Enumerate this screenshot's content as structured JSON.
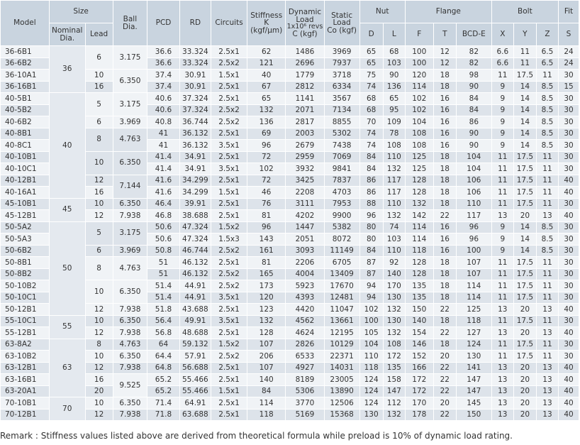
{
  "header": {
    "model": "Model",
    "size": "Size",
    "nominal_dia": [
      "Nominal",
      "Dia."
    ],
    "lead": "Lead",
    "ball_dia": [
      "Ball",
      "Dia."
    ],
    "pcd": "PCD",
    "rd": "RD",
    "circuits": "Circuits",
    "stiffness": [
      "Stiffness",
      "K",
      "(kgf/μm)"
    ],
    "dynamic_load": [
      "Dynamic",
      "Load",
      "1x10⁶ revs",
      "C (kgf)"
    ],
    "static_load": [
      "Static",
      "Load",
      "Co (kgf)"
    ],
    "nut": "Nut",
    "nut_d": "D",
    "nut_l": "L",
    "flange": "Flange",
    "flange_f": "F",
    "flange_t": "T",
    "flange_bcd": "BCD-E",
    "bolt": "Bolt",
    "bolt_x": "X",
    "bolt_y": "Y",
    "bolt_z": "Z",
    "fit": "Fit",
    "fit_s": "S"
  },
  "groups": [
    {
      "nominal": "36",
      "leads": [
        {
          "lead": "6",
          "ball": "3.175",
          "rows": [
            [
              "36-6B1",
              "36.6",
              "33.324",
              "2.5x1",
              "62",
              "1486",
              "3969",
              "65",
              "68",
              "100",
              "12",
              "82",
              "6.6",
              "11",
              "6.5",
              "24"
            ],
            [
              "36-6B2",
              "36.6",
              "33.324",
              "2.5x2",
              "121",
              "2696",
              "7937",
              "65",
              "103",
              "100",
              "12",
              "82",
              "6.6",
              "11",
              "6.5",
              "24"
            ]
          ]
        },
        {
          "lead": "10",
          "ball": "6.350",
          "ball_rows": 2,
          "rows": [
            [
              "36-10A1",
              "37.4",
              "30.91",
              "1.5x1",
              "40",
              "1779",
              "3718",
              "75",
              "90",
              "120",
              "18",
              "98",
              "11",
              "17.5",
              "11",
              "30"
            ]
          ]
        },
        {
          "lead": "16",
          "ball": null,
          "rows": [
            [
              "36-16B1",
              "37.4",
              "30.91",
              "2.5x1",
              "67",
              "2812",
              "6334",
              "74",
              "136",
              "114",
              "18",
              "90",
              "9",
              "14",
              "8.5",
              "15"
            ]
          ]
        }
      ]
    },
    {
      "nominal": "40",
      "leads": [
        {
          "lead": "5",
          "ball": "3.175",
          "rows": [
            [
              "40-5B1",
              "40.6",
              "37.324",
              "2.5x1",
              "65",
              "1141",
              "3567",
              "68",
              "65",
              "102",
              "16",
              "84",
              "9",
              "14",
              "8.5",
              "30"
            ],
            [
              "40-5B2",
              "40.6",
              "37.324",
              "2.5x2",
              "132",
              "2071",
              "7134",
              "68",
              "95",
              "102",
              "16",
              "84",
              "9",
              "14",
              "8.5",
              "30"
            ]
          ]
        },
        {
          "lead": "6",
          "ball": "3.969",
          "rows": [
            [
              "40-6B2",
              "40.8",
              "36.744",
              "2.5x2",
              "136",
              "2817",
              "8855",
              "70",
              "109",
              "104",
              "16",
              "86",
              "9",
              "14",
              "8.5",
              "30"
            ]
          ]
        },
        {
          "lead": "8",
          "ball": "4.763",
          "rows": [
            [
              "40-8B1",
              "41",
              "36.132",
              "2.5x1",
              "69",
              "2003",
              "5302",
              "74",
              "78",
              "108",
              "16",
              "90",
              "9",
              "14",
              "8.5",
              "30"
            ],
            [
              "40-8C1",
              "41",
              "36.132",
              "3.5x1",
              "96",
              "2679",
              "7438",
              "74",
              "108",
              "108",
              "16",
              "90",
              "9",
              "14",
              "8.5",
              "30"
            ]
          ]
        },
        {
          "lead": "10",
          "ball": "6.350",
          "rows": [
            [
              "40-10B1",
              "41.4",
              "34.91",
              "2.5x1",
              "72",
              "2959",
              "7069",
              "84",
              "110",
              "125",
              "18",
              "104",
              "11",
              "17.5",
              "11",
              "30"
            ],
            [
              "40-10C1",
              "41.4",
              "34.91",
              "3.5x1",
              "102",
              "3932",
              "9841",
              "84",
              "132",
              "125",
              "18",
              "104",
              "11",
              "17.5",
              "11",
              "30"
            ]
          ]
        },
        {
          "lead": "12",
          "ball": "7.144",
          "ball_rows": 2,
          "rows": [
            [
              "40-12B1",
              "41.6",
              "34.299",
              "2.5x1",
              "72",
              "3425",
              "7837",
              "86",
              "117",
              "128",
              "18",
              "106",
              "11",
              "17.5",
              "11",
              "40"
            ]
          ]
        },
        {
          "lead": "16",
          "ball": null,
          "rows": [
            [
              "40-16A1",
              "41.6",
              "34.299",
              "1.5x1",
              "46",
              "2208",
              "4703",
              "86",
              "117",
              "128",
              "18",
              "106",
              "11",
              "17.5",
              "11",
              "40"
            ]
          ]
        }
      ]
    },
    {
      "nominal": "45",
      "leads": [
        {
          "lead": "10",
          "ball": "6.350",
          "rows": [
            [
              "45-10B1",
              "46.4",
              "39.91",
              "2.5x1",
              "76",
              "3111",
              "7953",
              "88",
              "110",
              "132",
              "18",
              "110",
              "11",
              "17.5",
              "11",
              "30"
            ]
          ]
        },
        {
          "lead": "12",
          "ball": "7.938",
          "rows": [
            [
              "45-12B1",
              "46.8",
              "38.688",
              "2.5x1",
              "81",
              "4202",
              "9900",
              "96",
              "132",
              "142",
              "22",
              "117",
              "13",
              "20",
              "13",
              "40"
            ]
          ]
        }
      ]
    },
    {
      "nominal": "50",
      "leads": [
        {
          "lead": "5",
          "ball": "3.175",
          "rows": [
            [
              "50-5A2",
              "50.6",
              "47.324",
              "1.5x2",
              "96",
              "1447",
              "5382",
              "80",
              "74",
              "114",
              "16",
              "96",
              "9",
              "14",
              "8.5",
              "30"
            ],
            [
              "50-5A3",
              "50.6",
              "47.324",
              "1.5x3",
              "143",
              "2051",
              "8072",
              "80",
              "103",
              "114",
              "16",
              "96",
              "9",
              "14",
              "8.5",
              "30"
            ]
          ]
        },
        {
          "lead": "6",
          "ball": "3.969",
          "rows": [
            [
              "50-6B2",
              "50.8",
              "46.744",
              "2.5x2",
              "161",
              "3093",
              "11149",
              "84",
              "110",
              "118",
              "16",
              "100",
              "9",
              "14",
              "8.5",
              "30"
            ]
          ]
        },
        {
          "lead": "8",
          "ball": "4.763",
          "rows": [
            [
              "50-8B1",
              "51",
              "46.132",
              "2.5x1",
              "81",
              "2206",
              "6705",
              "87",
              "92",
              "128",
              "18",
              "107",
              "11",
              "17.5",
              "11",
              "30"
            ],
            [
              "50-8B2",
              "51",
              "46.132",
              "2.5x2",
              "165",
              "4004",
              "13409",
              "87",
              "140",
              "128",
              "18",
              "107",
              "11",
              "17.5",
              "11",
              "30"
            ]
          ]
        },
        {
          "lead": "10",
          "ball": "6.350",
          "rows": [
            [
              "50-10B2",
              "51.4",
              "44.91",
              "2.5x2",
              "173",
              "5923",
              "17670",
              "94",
              "170",
              "135",
              "18",
              "114",
              "11",
              "17.5",
              "11",
              "30"
            ],
            [
              "50-10C1",
              "51.4",
              "44.91",
              "3.5x1",
              "120",
              "4393",
              "12481",
              "94",
              "130",
              "135",
              "18",
              "114",
              "11",
              "17.5",
              "11",
              "30"
            ]
          ]
        },
        {
          "lead": "12",
          "ball": "7.938",
          "rows": [
            [
              "50-12B1",
              "51.8",
              "43.688",
              "2.5x1",
              "123",
              "4420",
              "11047",
              "102",
              "132",
              "150",
              "22",
              "125",
              "13",
              "20",
              "13",
              "40"
            ]
          ]
        }
      ]
    },
    {
      "nominal": "55",
      "leads": [
        {
          "lead": "10",
          "ball": "6.350",
          "rows": [
            [
              "55-10C1",
              "56.4",
              "49.91",
              "3.5x1",
              "132",
              "4562",
              "13661",
              "100",
              "130",
              "140",
              "18",
              "118",
              "11",
              "17.5",
              "11",
              "30"
            ]
          ]
        },
        {
          "lead": "12",
          "ball": "7.938",
          "rows": [
            [
              "55-12B1",
              "56.8",
              "48.688",
              "2.5x1",
              "128",
              "4624",
              "12195",
              "105",
              "132",
              "154",
              "22",
              "127",
              "13",
              "20",
              "13",
              "40"
            ]
          ]
        }
      ]
    },
    {
      "nominal": "63",
      "leads": [
        {
          "lead": "8",
          "ball": "4.763",
          "rows": [
            [
              "63-8A2",
              "64",
              "59.132",
              "1.5x2",
              "107",
              "2826",
              "10129",
              "104",
              "108",
              "146",
              "18",
              "124",
              "11",
              "17.5",
              "11",
              "30"
            ]
          ]
        },
        {
          "lead": "10",
          "ball": "6.350",
          "rows": [
            [
              "63-10B2",
              "64.4",
              "57.91",
              "2.5x2",
              "206",
              "6533",
              "22371",
              "110",
              "172",
              "152",
              "20",
              "130",
              "11",
              "17.5",
              "11",
              "30"
            ]
          ]
        },
        {
          "lead": "12",
          "ball": "7.938",
          "rows": [
            [
              "63-12B1",
              "64.8",
              "56.688",
              "2.5x1",
              "107",
              "4927",
              "14031",
              "118",
              "135",
              "166",
              "22",
              "141",
              "13",
              "20",
              "13",
              "40"
            ]
          ]
        },
        {
          "lead": "16",
          "ball": "9.525",
          "ball_rows": 2,
          "rows": [
            [
              "63-16B1",
              "65.2",
              "55.466",
              "2.5x1",
              "140",
              "8189",
              "23005",
              "124",
              "158",
              "172",
              "22",
              "147",
              "13",
              "20",
              "13",
              "40"
            ]
          ]
        },
        {
          "lead": "20",
          "ball": null,
          "rows": [
            [
              "63-20A1",
              "65.2",
              "55.466",
              "1.5x1",
              "84",
              "5306",
              "13890",
              "124",
              "147",
              "172",
              "22",
              "147",
              "13",
              "20",
              "13",
              "40"
            ]
          ]
        }
      ]
    },
    {
      "nominal": "70",
      "leads": [
        {
          "lead": "10",
          "ball": "6.350",
          "rows": [
            [
              "70-10B1",
              "71.4",
              "64.91",
              "2.5x1",
              "114",
              "3770",
              "12506",
              "124",
              "112",
              "170",
              "20",
              "145",
              "13",
              "20",
              "13",
              "40"
            ]
          ]
        },
        {
          "lead": "12",
          "ball": "7.938",
          "rows": [
            [
              "70-12B1",
              "71.8",
              "63.688",
              "2.5x1",
              "118",
              "5169",
              "15368",
              "130",
              "132",
              "178",
              "22",
              "150",
              "13",
              "20",
              "13",
              "40"
            ]
          ]
        }
      ]
    }
  ],
  "remark": "Remark : Stiffness values listed above are derived from theoretical formula while preload is 10% of dynamic load rating."
}
